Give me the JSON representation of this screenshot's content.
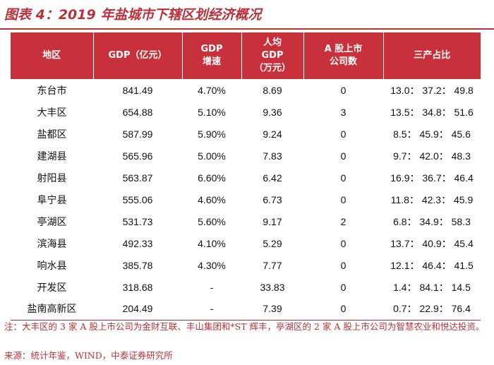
{
  "title": "图表 4：2019 年盐城市下辖区划经济概况",
  "table": {
    "headers": [
      "地区",
      "GDP（亿元）",
      "GDP\n增速",
      "人均\nGDP\n（万元）",
      "A 股上市\n公司数",
      "三产占比"
    ],
    "rows": [
      [
        "东台市",
        "841.49",
        "4.70%",
        "8.69",
        "0",
        "13.0： 37.2： 49.8"
      ],
      [
        "大丰区",
        "654.88",
        "5.10%",
        "9.36",
        "3",
        "13.5： 34.8： 51.6"
      ],
      [
        "盐都区",
        "587.99",
        "5.90%",
        "9.24",
        "0",
        "8.5： 45.9： 45.6"
      ],
      [
        "建湖县",
        "565.96",
        "5.00%",
        "7.83",
        "0",
        "9.7： 42.0： 48.3"
      ],
      [
        "射阳县",
        "563.87",
        "6.60%",
        "6.42",
        "0",
        "16.9： 36.7： 46.4"
      ],
      [
        "阜宁县",
        "555.06",
        "4.60%",
        "6.73",
        "0",
        "11.8： 42.3： 45.9"
      ],
      [
        "亭湖区",
        "531.73",
        "5.60%",
        "9.17",
        "2",
        "6.8： 34.9： 58.3"
      ],
      [
        "滨海县",
        "492.33",
        "4.10%",
        "5.29",
        "0",
        "13.7： 40.9： 45.4"
      ],
      [
        "响水县",
        "385.78",
        "4.30%",
        "7.77",
        "0",
        "12.1： 46.4： 41.5"
      ],
      [
        "开发区",
        "318.68",
        "-",
        "33.83",
        "0",
        "1.4： 84.1： 14.5"
      ],
      [
        "盐南高新区",
        "204.49",
        "-",
        "7.39",
        "0",
        "0.7： 22.9： 76.4"
      ]
    ]
  },
  "note": "注：大丰区的 3 家 A 股上市公司为金财互联、丰山集团和*ST 辉丰，亭湖区的 2 家 A 股上市公司为智慧农业和悦达投资。",
  "source": "来源：统计年鉴，WIND，中泰证券研究所"
}
